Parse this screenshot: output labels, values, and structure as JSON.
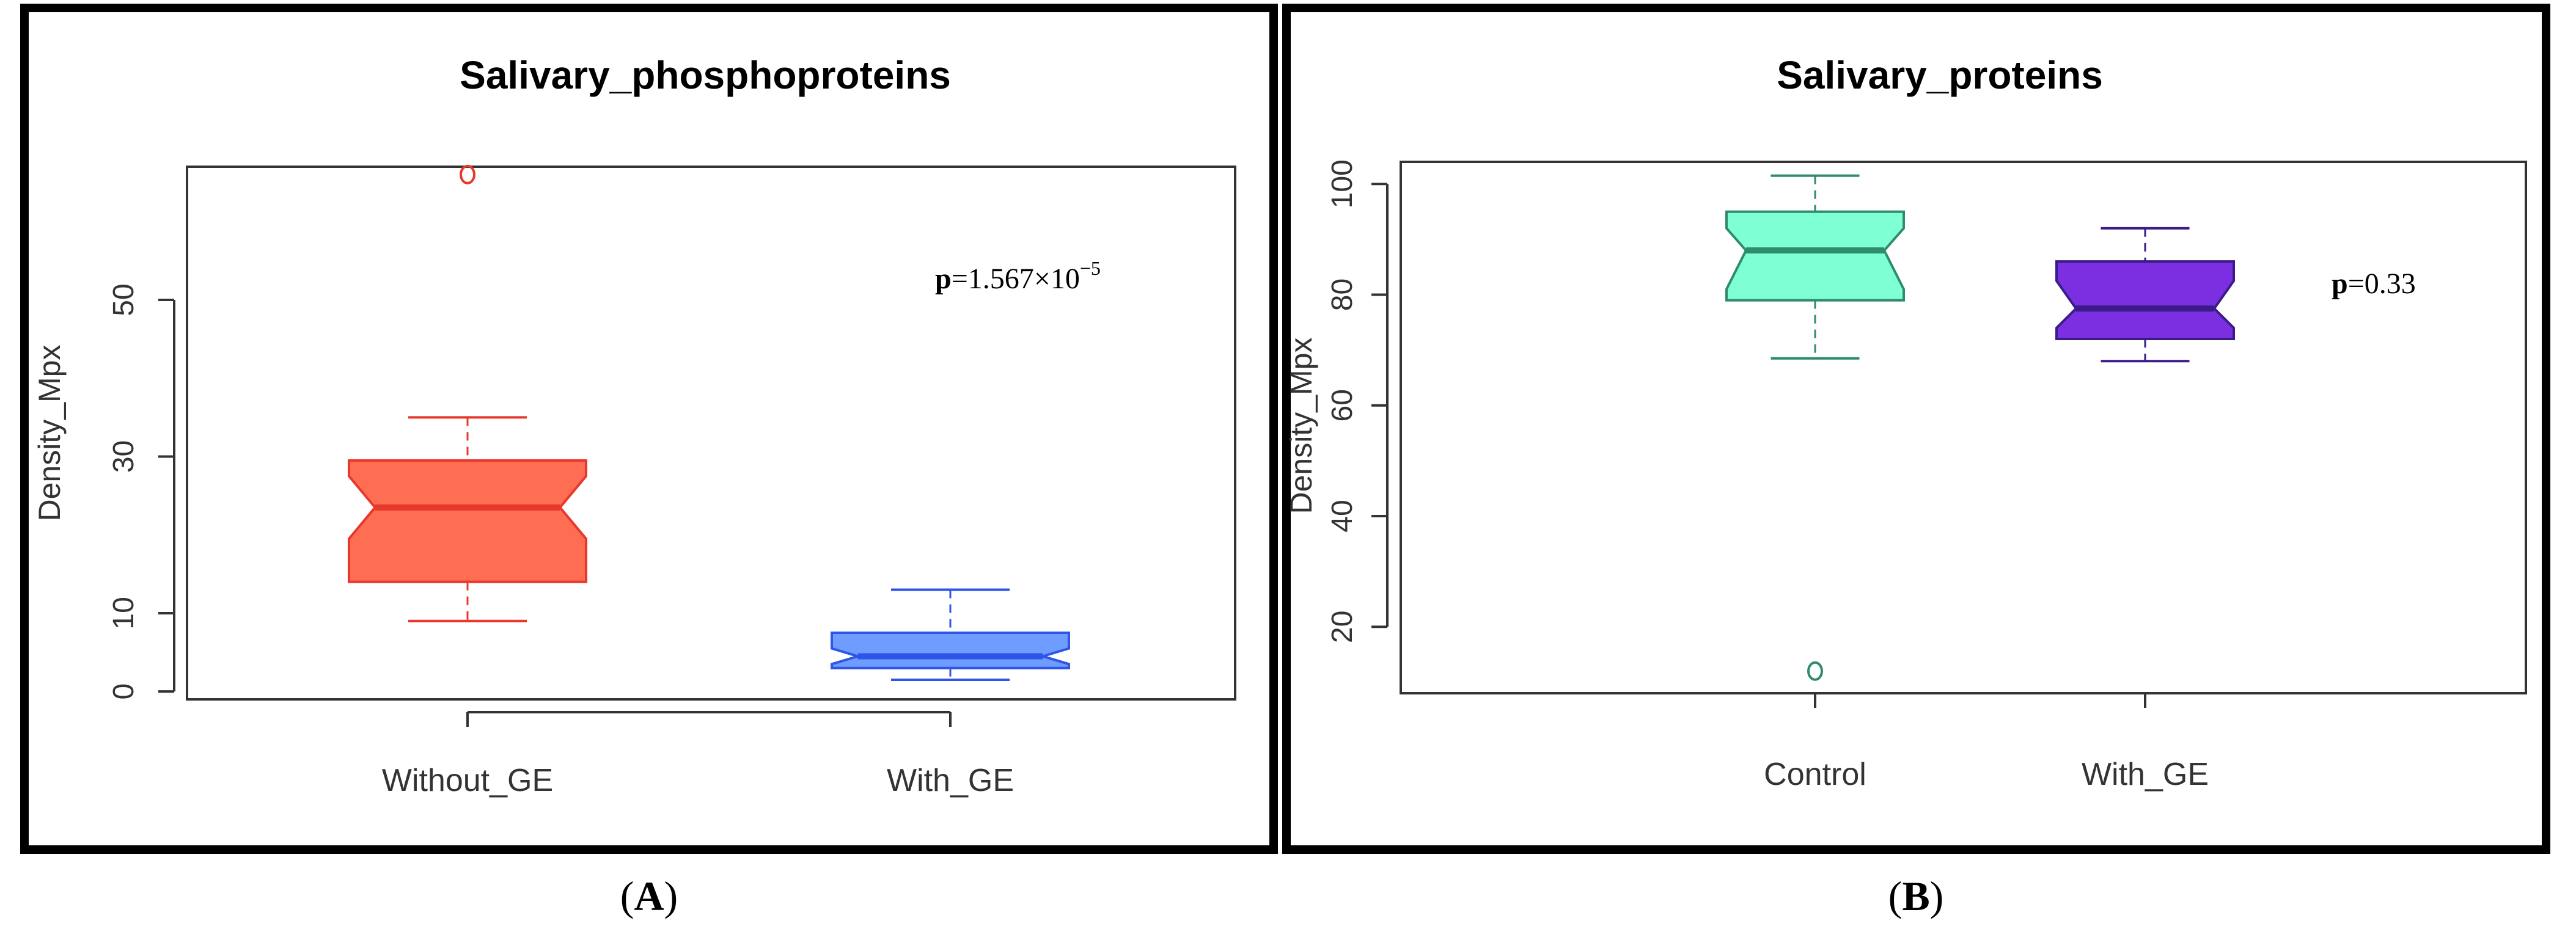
{
  "panels": [
    {
      "letter": "A"
    },
    {
      "letter": "B"
    }
  ],
  "colors": {
    "frame": "#000000",
    "axis": "#333333",
    "without_ge_fill": "#FF6E52",
    "without_ge_line": "#E8372C",
    "with_ge_blue_fill": "#6E9CFF",
    "with_ge_blue_line": "#2F55E8",
    "control_fill": "#7FFFD4",
    "control_line": "#2E8B6E",
    "with_ge_purple_fill": "#7B2FE0",
    "with_ge_purple_line": "#3B1A8A"
  },
  "chart_data": [
    {
      "type": "boxplot",
      "notched": true,
      "title": "Salivary_phosphoproteins",
      "xlabel": "",
      "ylabel": "Density_Mpx",
      "ylim": [
        -1,
        67
      ],
      "yticks": [
        0,
        10,
        30,
        50
      ],
      "categories": [
        "Without_GE",
        "With_GE"
      ],
      "boxes": [
        {
          "name": "Without_GE",
          "whisker_low": 9,
          "q1": 14,
          "median": 23.5,
          "q3": 29.5,
          "whisker_high": 35,
          "notch_low": 19.5,
          "notch_high": 27.5,
          "outliers": [
            66
          ]
        },
        {
          "name": "With_GE",
          "whisker_low": 1.5,
          "q1": 3,
          "median": 4.5,
          "q3": 7.5,
          "whisker_high": 13,
          "notch_low": 3.5,
          "notch_high": 5.5,
          "outliers": []
        }
      ],
      "annotation": {
        "bold": "p",
        "text": "=1.567×10",
        "sup": "−5"
      }
    },
    {
      "type": "boxplot",
      "notched": true,
      "title": "Salivary_proteins",
      "xlabel": "",
      "ylabel": "Density_Mpx",
      "ylim": [
        8,
        104
      ],
      "yticks": [
        20,
        40,
        60,
        80,
        100
      ],
      "categories": [
        "Control",
        "With_GE"
      ],
      "boxes": [
        {
          "name": "Control",
          "whisker_low": 68.5,
          "q1": 79,
          "median": 88,
          "q3": 95,
          "whisker_high": 101.5,
          "notch_low": 81,
          "notch_high": 92,
          "outliers": [
            12
          ]
        },
        {
          "name": "With_GE",
          "whisker_low": 68,
          "q1": 72,
          "median": 77.5,
          "q3": 86,
          "whisker_high": 92,
          "notch_low": 74,
          "notch_high": 82.5,
          "outliers": []
        }
      ],
      "annotation": {
        "bold": "p",
        "text": "=0.33",
        "sup": ""
      }
    }
  ]
}
